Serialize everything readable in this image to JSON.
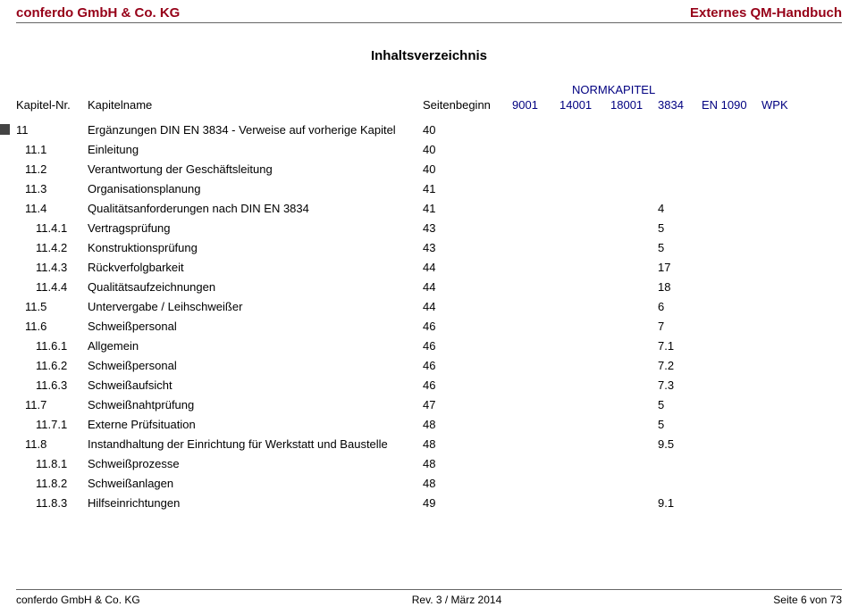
{
  "header": {
    "left": "conferdo GmbH & Co. KG",
    "right": "Externes QM-Handbuch"
  },
  "title": "Inhaltsverzeichnis",
  "colors": {
    "brand": "#960018",
    "blue": "#000080",
    "rule": "#666666",
    "text": "#000000"
  },
  "columns": {
    "nr": "Kapitel-Nr.",
    "name": "Kapitelname",
    "page": "Seitenbeginn",
    "normkapitel": "NORMKAPITEL",
    "c9001": "9001",
    "c14001": "14001",
    "c18001": "18001",
    "c3834": "3834",
    "c1090": "EN 1090",
    "cwpk": "WPK"
  },
  "rows": [
    {
      "indent": 0,
      "mark": true,
      "nr": "11",
      "name": "Ergänzungen DIN EN 3834 - Verweise auf vorherige Kapitel",
      "page": "40",
      "c3834": ""
    },
    {
      "indent": 1,
      "nr": "11.1",
      "name": "Einleitung",
      "page": "40"
    },
    {
      "indent": 1,
      "nr": "11.2",
      "name": "Verantwortung der Geschäftsleitung",
      "page": "40"
    },
    {
      "indent": 1,
      "nr": "11.3",
      "name": "Organisationsplanung",
      "page": "41"
    },
    {
      "indent": 1,
      "nr": "11.4",
      "name": "Qualitätsanforderungen nach DIN EN 3834",
      "page": "41",
      "c3834": "4"
    },
    {
      "indent": 2,
      "nr": "11.4.1",
      "name": "Vertragsprüfung",
      "page": "43",
      "c3834": "5"
    },
    {
      "indent": 2,
      "nr": "11.4.2",
      "name": "Konstruktionsprüfung",
      "page": "43",
      "c3834": "5"
    },
    {
      "indent": 2,
      "nr": "11.4.3",
      "name": "Rückverfolgbarkeit",
      "page": "44",
      "c3834": "17"
    },
    {
      "indent": 2,
      "nr": "11.4.4",
      "name": "Qualitätsaufzeichnungen",
      "page": "44",
      "c3834": "18"
    },
    {
      "indent": 1,
      "nr": "11.5",
      "name": "Untervergabe / Leihschweißer",
      "page": "44",
      "c3834": "6"
    },
    {
      "indent": 1,
      "nr": "11.6",
      "name": "Schweißpersonal",
      "page": "46",
      "c3834": "7"
    },
    {
      "indent": 2,
      "nr": "11.6.1",
      "name": "Allgemein",
      "page": "46",
      "c3834": "7.1"
    },
    {
      "indent": 2,
      "nr": "11.6.2",
      "name": "Schweißpersonal",
      "page": "46",
      "c3834": "7.2"
    },
    {
      "indent": 2,
      "nr": "11.6.3",
      "name": "Schweißaufsicht",
      "page": "46",
      "c3834": "7.3"
    },
    {
      "indent": 1,
      "nr": "11.7",
      "name": "Schweißnahtprüfung",
      "page": "47",
      "c3834": "5"
    },
    {
      "indent": 2,
      "nr": "11.7.1",
      "name": "Externe Prüfsituation",
      "page": "48",
      "c3834": "5"
    },
    {
      "indent": 1,
      "nr": "11.8",
      "name": "Instandhaltung der Einrichtung für Werkstatt und Baustelle",
      "page": "48",
      "c3834": "9.5"
    },
    {
      "indent": 2,
      "nr": "11.8.1",
      "name": "Schweißprozesse",
      "page": "48"
    },
    {
      "indent": 2,
      "nr": "11.8.2",
      "name": "Schweißanlagen",
      "page": "48"
    },
    {
      "indent": 2,
      "nr": "11.8.3",
      "name": "Hilfseinrichtungen",
      "page": "49",
      "c3834": "9.1"
    }
  ],
  "footer": {
    "left": "conferdo GmbH & Co. KG",
    "center": "Rev. 3 / März 2014",
    "right": "Seite 6 von 73"
  }
}
